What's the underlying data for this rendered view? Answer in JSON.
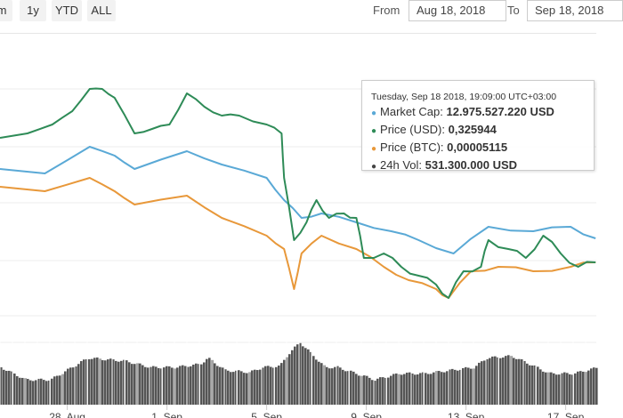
{
  "toolbar": {
    "buttons": [
      "m",
      "1y",
      "YTD",
      "ALL"
    ],
    "from_label": "From",
    "from_value": "Aug 18, 2018",
    "to_label": "To",
    "to_value": "Sep 18, 2018"
  },
  "tooltip": {
    "header": "Tuesday, Sep 18 2018, 19:09:00 UTC+03:00",
    "rows": [
      {
        "label": "Market Cap:",
        "value": "12.975.527.220 USD",
        "color": "#5aa9d6"
      },
      {
        "label": "Price (USD):",
        "value": "0,325944",
        "color": "#2e8b57"
      },
      {
        "label": "Price (BTC):",
        "value": "0,00005115",
        "color": "#e8983a"
      },
      {
        "label": "24h Vol:",
        "value": "531.300.000 USD",
        "color": "#444444"
      }
    ]
  },
  "chart_data": {
    "type": "line",
    "x_unit": "days since Aug 25 2018",
    "y_unit": "relative index",
    "ylim": [
      0,
      300
    ],
    "x_ticks": [
      {
        "label": "28. Aug",
        "x": 2.7
      },
      {
        "label": "1. Sep",
        "x": 6.7
      },
      {
        "label": "5. Sep",
        "x": 10.7
      },
      {
        "label": "9. Sep",
        "x": 14.7
      },
      {
        "label": "13. Sep",
        "x": 18.7
      },
      {
        "label": "17. Sep",
        "x": 22.7
      }
    ],
    "series": [
      {
        "name": "Market Cap",
        "color": "#5aa9d6",
        "x": [
          0,
          1.8,
          3.6,
          4.6,
          5.4,
          7.5,
          8.9,
          10.7,
          11.4,
          12.1,
          12.9,
          14.3,
          15.7,
          16.8,
          18.2,
          19.6,
          21.4,
          22.9,
          23.9
        ],
        "y": [
          170,
          165,
          195,
          185,
          170,
          190,
          175,
          160,
          135,
          115,
          120,
          110,
          100,
          90,
          75,
          105,
          100,
          105,
          92
        ]
      },
      {
        "name": "Price (BTC)",
        "color": "#e8983a",
        "x": [
          0,
          1.8,
          3.6,
          4.6,
          5.4,
          7.5,
          8.9,
          10.7,
          11.4,
          11.8,
          12.1,
          12.9,
          14.3,
          15.4,
          16.4,
          17.5,
          18,
          18.9,
          20,
          21.4,
          22.9,
          23.9
        ],
        "y": [
          150,
          145,
          160,
          145,
          130,
          140,
          115,
          95,
          80,
          35,
          75,
          95,
          80,
          60,
          45,
          35,
          25,
          55,
          60,
          55,
          60,
          65
        ]
      },
      {
        "name": "Price (USD)",
        "color": "#2e8b57",
        "x": [
          0,
          1.1,
          2.1,
          2.9,
          3.6,
          4.1,
          4.6,
          5.4,
          6.1,
          6.8,
          7.5,
          8.2,
          8.9,
          9.6,
          10.7,
          11.3,
          11.4,
          11.8,
          12.3,
          12.7,
          13.2,
          13.8,
          14.3,
          14.6,
          15.4,
          16.1,
          16.8,
          17.5,
          18,
          18.6,
          19.3,
          19.6,
          20.4,
          21.1,
          21.8,
          22.5,
          23.2,
          23.9
        ],
        "y": [
          205,
          210,
          220,
          235,
          260,
          260,
          250,
          210,
          215,
          220,
          255,
          240,
          230,
          230,
          220,
          210,
          160,
          90,
          110,
          135,
          115,
          120,
          115,
          70,
          75,
          60,
          50,
          40,
          25,
          55,
          60,
          90,
          80,
          70,
          95,
          75,
          60,
          65
        ]
      },
      {
        "name": "24h Vol",
        "type": "area",
        "color": "#555555",
        "x": [
          0,
          1,
          2,
          3.5,
          5,
          6,
          7,
          8,
          8.3,
          9,
          10,
          10.5,
          11.2,
          11.5,
          12,
          12.5,
          13,
          13.5,
          15,
          16,
          17,
          18,
          19,
          19.5,
          20.5,
          21.5,
          22,
          23,
          24
        ],
        "y": [
          60,
          40,
          40,
          75,
          70,
          60,
          60,
          65,
          75,
          55,
          52,
          60,
          62,
          80,
          100,
          80,
          60,
          60,
          40,
          50,
          50,
          55,
          60,
          75,
          78,
          60,
          50,
          50,
          60
        ]
      }
    ]
  }
}
